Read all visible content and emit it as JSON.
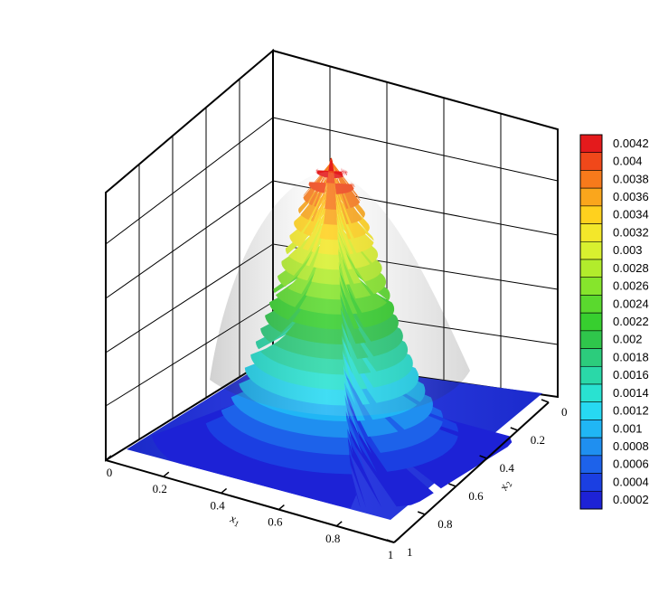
{
  "chart_data": {
    "type": "surface3d",
    "title": "",
    "x_axis": {
      "label": "x",
      "label_sub": "1",
      "ticks": [
        "0",
        "0.2",
        "0.4",
        "0.6",
        "0.8",
        "1"
      ],
      "range": [
        0,
        1
      ]
    },
    "y_axis": {
      "label": "x",
      "label_sub": "2",
      "ticks": [
        "0",
        "0.2",
        "0.4",
        "0.6",
        "0.8",
        "1"
      ],
      "range": [
        0,
        1
      ]
    },
    "z_range": [
      0,
      0.0043
    ],
    "peak": {
      "x": 0.5,
      "y": 0.5,
      "z": 0.0043
    },
    "grid": true,
    "colormap": {
      "legend_position": "right",
      "levels": [
        "0.0042",
        "0.004",
        "0.0038",
        "0.0036",
        "0.0034",
        "0.0032",
        "0.003",
        "0.0028",
        "0.0026",
        "0.0024",
        "0.0022",
        "0.002",
        "0.0018",
        "0.0016",
        "0.0014",
        "0.0012",
        "0.001",
        "0.0008",
        "0.0006",
        "0.0004",
        "0.0002"
      ],
      "colors": [
        "#e41a1c",
        "#f0481a",
        "#f77a1b",
        "#faa61c",
        "#ffd11e",
        "#f3e72a",
        "#d8f02f",
        "#b2ec2c",
        "#86e52c",
        "#5ad92e",
        "#37cf2f",
        "#2fc64b",
        "#2ccc7c",
        "#2ad8a8",
        "#29e2d1",
        "#27d9f2",
        "#20b6f5",
        "#1f8ff0",
        "#1d62ea",
        "#1b3fe2",
        "#1d22d6"
      ]
    }
  }
}
